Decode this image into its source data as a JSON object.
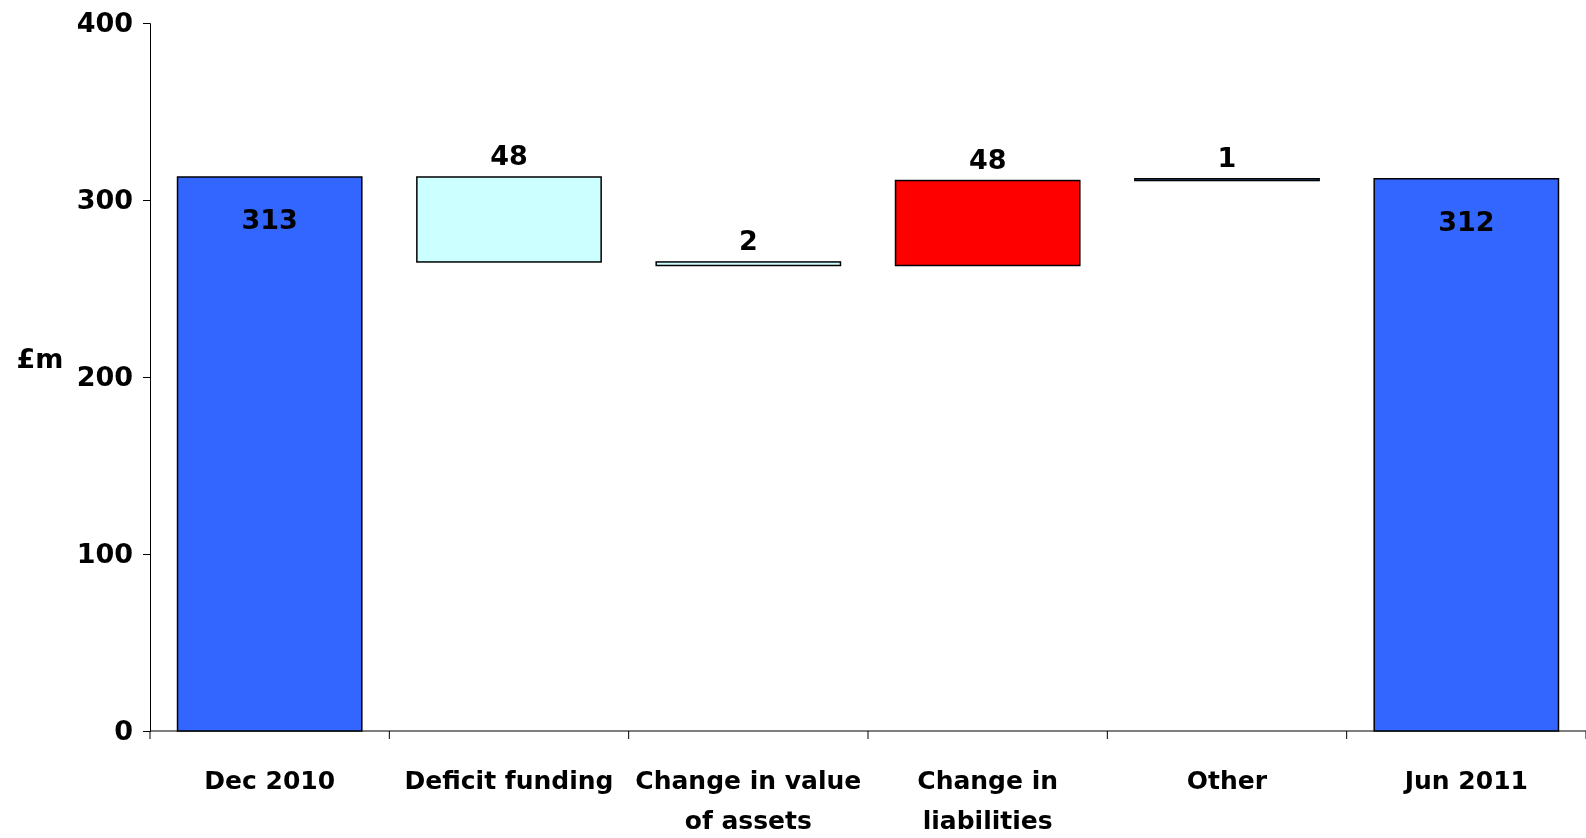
{
  "chart_data": {
    "type": "bar",
    "ylabel": "£m",
    "categories": [
      "Dec 2010",
      "Deficit funding",
      "Change in value of assets",
      "Change in liabilities",
      "Other",
      "Jun 2011"
    ],
    "values": [
      313,
      48,
      2,
      48,
      1,
      312
    ],
    "base": [
      0,
      265,
      263,
      263,
      311,
      0
    ],
    "colors": [
      "#3366ff",
      "#ccffff",
      "#ccffff",
      "#ff0000",
      "#3399ff",
      "#3366ff"
    ],
    "ylim": [
      0,
      400
    ],
    "yticks": [
      0,
      100,
      200,
      300,
      400
    ],
    "data_labels": true,
    "grid": false
  }
}
